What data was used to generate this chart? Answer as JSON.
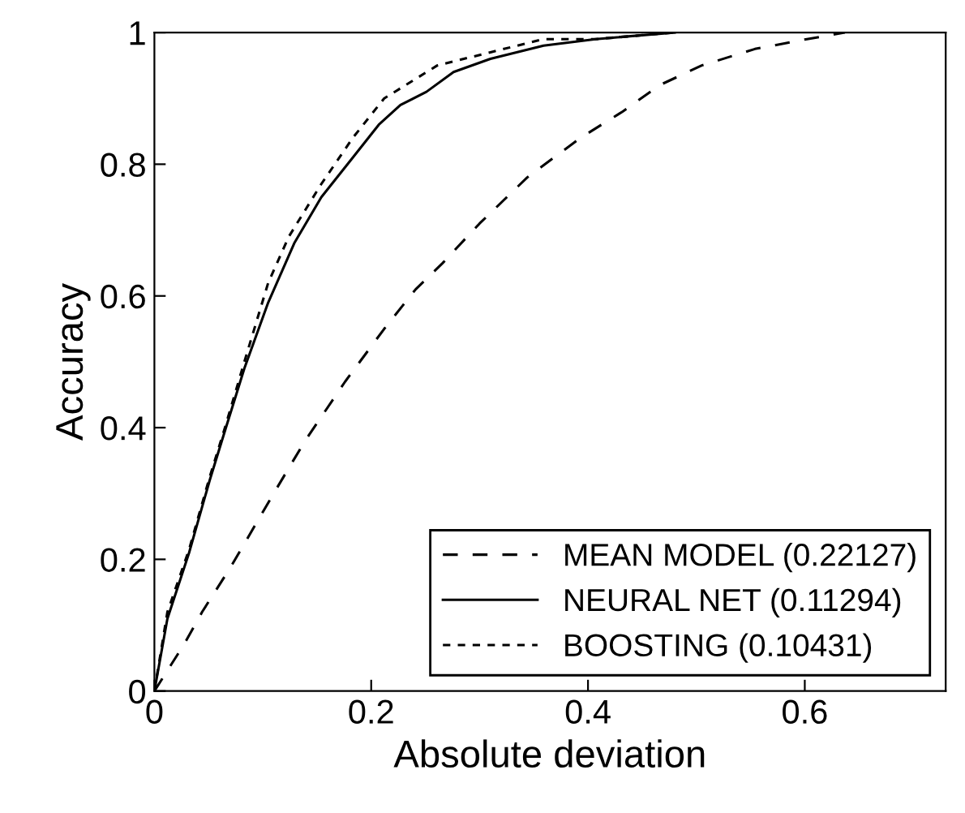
{
  "chart_data": {
    "type": "line",
    "xlabel": "Absolute deviation",
    "ylabel": "Accuracy",
    "xlim": [
      0,
      0.73
    ],
    "ylim": [
      0,
      1
    ],
    "xticks": [
      0,
      0.2,
      0.4,
      0.6
    ],
    "yticks": [
      0,
      0.2,
      0.4,
      0.6,
      0.8,
      1
    ],
    "grid": false,
    "legend": "bottom right",
    "marker": "none",
    "series": [
      {
        "name": "MEAN MODEL (0.22127)",
        "color": "#000000",
        "line_style": "dashed",
        "x": [
          0,
          0.027,
          0.044,
          0.071,
          0.11,
          0.139,
          0.176,
          0.212,
          0.241,
          0.266,
          0.3,
          0.344,
          0.393,
          0.432,
          0.466,
          0.505,
          0.554,
          0.602,
          0.637
        ],
        "values": [
          0,
          0.07,
          0.12,
          0.19,
          0.3,
          0.38,
          0.47,
          0.55,
          0.61,
          0.65,
          0.71,
          0.78,
          0.84,
          0.88,
          0.92,
          0.95,
          0.975,
          0.99,
          1.0
        ]
      },
      {
        "name": "NEURAL NET (0.11294)",
        "color": "#000000",
        "line_style": "solid",
        "x": [
          0,
          0.012,
          0.032,
          0.051,
          0.066,
          0.083,
          0.105,
          0.129,
          0.154,
          0.183,
          0.207,
          0.227,
          0.251,
          0.276,
          0.31,
          0.359,
          0.407,
          0.48
        ],
        "values": [
          0,
          0.11,
          0.21,
          0.32,
          0.4,
          0.49,
          0.59,
          0.68,
          0.75,
          0.81,
          0.86,
          0.89,
          0.91,
          0.94,
          0.96,
          0.98,
          0.99,
          1.0
        ]
      },
      {
        "name": "BOOSTING (0.10431)",
        "color": "#000000",
        "line_style": "dotted",
        "x": [
          0,
          0.012,
          0.032,
          0.051,
          0.066,
          0.083,
          0.105,
          0.124,
          0.154,
          0.183,
          0.212,
          0.261,
          0.31,
          0.359,
          0.407,
          0.48
        ],
        "values": [
          0,
          0.12,
          0.215,
          0.325,
          0.405,
          0.5,
          0.62,
          0.69,
          0.77,
          0.84,
          0.9,
          0.95,
          0.97,
          0.99,
          0.99,
          1.0
        ]
      }
    ]
  }
}
